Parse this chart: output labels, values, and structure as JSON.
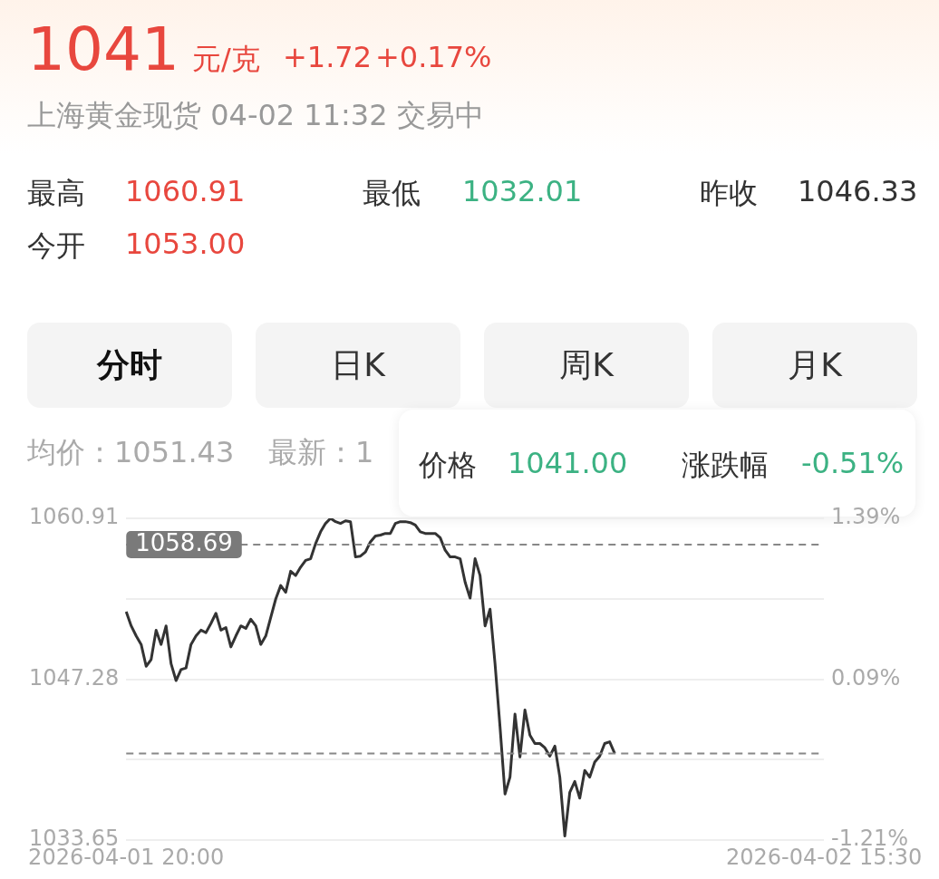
{
  "chart_data": {
    "type": "line",
    "title": "1041",
    "subtitle": "上海黄金现货 04-02 11:32 交易中",
    "annotations": [
      "元/克",
      "+1.72",
      "+0.17%",
      "最高",
      "1060.91",
      "最低",
      "1032.01",
      "昨收",
      "1046.33",
      "今开",
      "1053.00",
      "分时",
      "日K",
      "周K",
      "月K",
      "均价：1051.43",
      "最新：1",
      "价格",
      "1041.00",
      "涨跌幅",
      "-0.51%"
    ],
    "categories": [
      "2026-04-01 20:00",
      null,
      null,
      null,
      null,
      null,
      null,
      null,
      null,
      null,
      null,
      null,
      null,
      null,
      null,
      null,
      null,
      null,
      null,
      null,
      null,
      null,
      null,
      null,
      null,
      null,
      null,
      null,
      null,
      null,
      null,
      null,
      null,
      null,
      null,
      null,
      null,
      null,
      null,
      null,
      null,
      null,
      null,
      null,
      null,
      null,
      null,
      null,
      null,
      null,
      null,
      null,
      null,
      null,
      null,
      null,
      null,
      null,
      null,
      null,
      null,
      null,
      null,
      null,
      null,
      null,
      null,
      null,
      null,
      null,
      null,
      null,
      null,
      null,
      null,
      null,
      null,
      null,
      null,
      null,
      null,
      null,
      null,
      null,
      null,
      null,
      null,
      null,
      null,
      null,
      null,
      null,
      null,
      null,
      null,
      null,
      null,
      null,
      null,
      null,
      null,
      null,
      null,
      null,
      null,
      null,
      null,
      null,
      null,
      null,
      null,
      null,
      null,
      null,
      null,
      null,
      null,
      null,
      null,
      null,
      null,
      null,
      null,
      null,
      null,
      null,
      null,
      null,
      null,
      null,
      null,
      null,
      null,
      null,
      null,
      null,
      null,
      null,
      null,
      null,
      "2026-04-02 15:30"
    ],
    "series": [
      {
        "color": "#333333",
        "values": [
          1053.0,
          1051.8,
          1050.95,
          1050.23,
          1048.38,
          1048.95,
          1051.44,
          1050.23,
          1051.8,
          1048.6,
          1047.17,
          1048.1,
          1048.24,
          1050.23,
          1050.95,
          1051.44,
          1051.23,
          1052.01,
          1052.87,
          1051.44,
          1051.66,
          1050.02,
          1050.95,
          1051.8,
          1051.59,
          1052.37,
          1051.8,
          1050.23,
          1050.95,
          1052.51,
          1054.08,
          1055.22,
          1054.65,
          1056.43,
          1056.07,
          1056.78,
          1057.35,
          1057.49,
          1058.77,
          1059.77,
          1060.48,
          1060.91,
          1060.63,
          1060.48,
          1060.7,
          1060.63,
          1057.64,
          1057.71,
          1058.06,
          1058.92,
          1059.42,
          1059.49,
          1059.63,
          1059.63,
          1060.48,
          1060.63,
          1060.63,
          1060.55,
          1060.34,
          1059.77,
          1059.63,
          1059.63,
          1059.63,
          1059.27,
          1058.21,
          1057.64,
          1057.64,
          1057.49,
          1055.5,
          1054.15,
          1057.49,
          1056.07,
          1051.8,
          1053.22,
          1048.6,
          1043.26,
          1037.56,
          1038.99,
          1044.33,
          1040.7,
          1044.68,
          1042.55,
          1041.84,
          1041.84,
          1041.48,
          1040.77,
          1041.62,
          1038.99,
          1034.01,
          1037.71,
          1038.63,
          1037.21,
          1039.56,
          1038.99,
          1040.27,
          1040.77,
          1041.84,
          1041.98,
          1041.0,
          null,
          null,
          null,
          null,
          null,
          null,
          null,
          null,
          null,
          null,
          null,
          null,
          null,
          null,
          null,
          null,
          null,
          null,
          null,
          null,
          null,
          null,
          null,
          null,
          null,
          null,
          null,
          null,
          null,
          null,
          null,
          null,
          null,
          null,
          null,
          null,
          null,
          null,
          null,
          null,
          null,
          null
        ]
      }
    ],
    "ylim": [
      1033.65,
      1060.91
    ],
    "yticks": [
      1033.65,
      {
        "value": 1040.46,
        "label": null
      },
      1047.28,
      {
        "value": 1054.09,
        "label": null
      },
      1060.91
    ],
    "y2lim": [
      -1.21,
      1.39
    ],
    "y2ticks": [
      {
        "value": -1.21,
        "label": "-1.21%"
      },
      {
        "value": 0.09,
        "label": "0.09%"
      },
      {
        "value": 1.39,
        "label": "1.39%"
      }
    ],
    "ref_lines": [
      {
        "axis": "y",
        "value": 1058.69,
        "label": "1058.69",
        "line_style": "dashed",
        "color": "#888888"
      },
      {
        "axis": "y",
        "value": 1041.0,
        "line_style": "dashed",
        "color": "#888888"
      }
    ],
    "grid": "y",
    "legend": false,
    "marker": "none",
    "line_style": "solid"
  }
}
